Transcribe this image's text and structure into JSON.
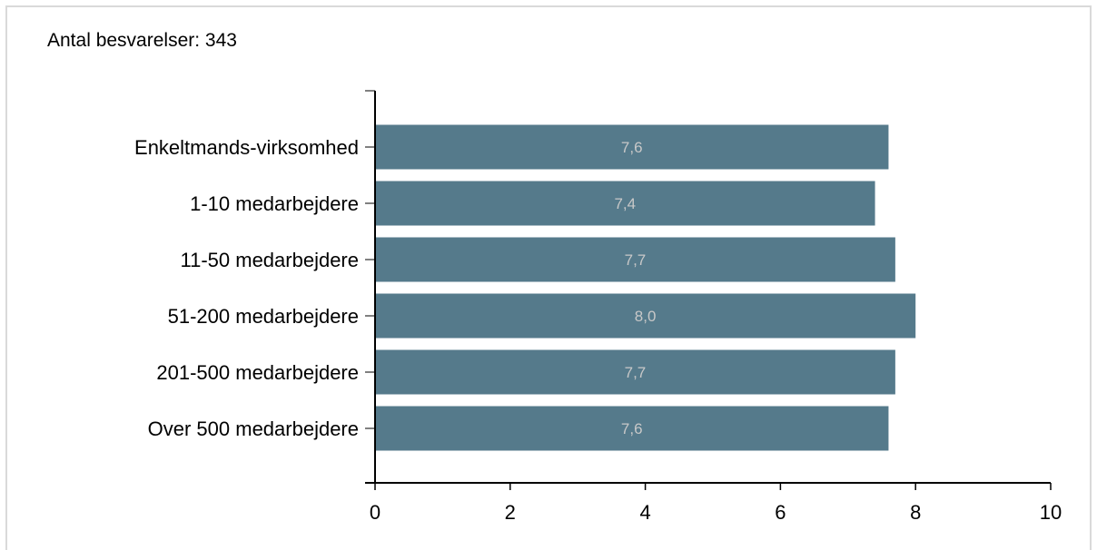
{
  "header": {
    "response_count": "Antal besvarelser: 343"
  },
  "chart_data": {
    "type": "bar",
    "orientation": "horizontal",
    "categories": [
      "Enkeltmands-virksomhed",
      "1-10 medarbejdere",
      "11-50 medarbejdere",
      "51-200 medarbejdere",
      "201-500 medarbejdere",
      "Over 500 medarbejdere"
    ],
    "values": [
      7.6,
      7.4,
      7.7,
      8.0,
      7.7,
      7.6
    ],
    "data_labels": [
      "7,6",
      "7,4",
      "7,7",
      "8,0",
      "7,7",
      "7,6"
    ],
    "xlim": [
      0,
      10
    ],
    "x_ticks": [
      0,
      2,
      4,
      6,
      8,
      10
    ],
    "bar_color": "#557a8b",
    "label_color": "#c8c8c8",
    "grid": false,
    "legend": "none"
  }
}
